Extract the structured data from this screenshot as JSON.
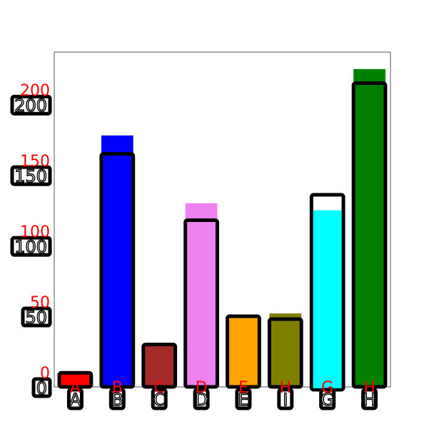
{
  "chart_data": {
    "type": "bar",
    "categories": [
      "A",
      "B",
      "C",
      "D",
      "E",
      "I",
      "G",
      "H"
    ],
    "overlay_labels": [
      "A",
      "B",
      "C",
      "D",
      "E",
      "H",
      "G",
      "H"
    ],
    "y_tick_labels": [
      "0",
      "50",
      "100",
      "150",
      "200"
    ],
    "overlay_y_tick_labels": [
      "0",
      "50",
      "100",
      "150",
      "200"
    ],
    "series": [
      {
        "values": [
          6,
          178,
          30,
          130,
          50,
          52,
          125,
          225
        ]
      },
      {
        "values": [
          10,
          165,
          30,
          118,
          50,
          48,
          136,
          215
        ]
      }
    ],
    "colors": [
      "#ff0000",
      "#0000ff",
      "#a52a2a",
      "#ee82ee",
      "#ffa500",
      "#808000",
      "#00ffff",
      "#008000"
    ],
    "outline_fill": [
      "",
      "",
      "#a52a2a",
      "",
      "#ffa500",
      "",
      "#ffffff",
      ""
    ],
    "ylim": [
      0,
      237
    ],
    "y_offset_top": 0,
    "grid": false
  }
}
